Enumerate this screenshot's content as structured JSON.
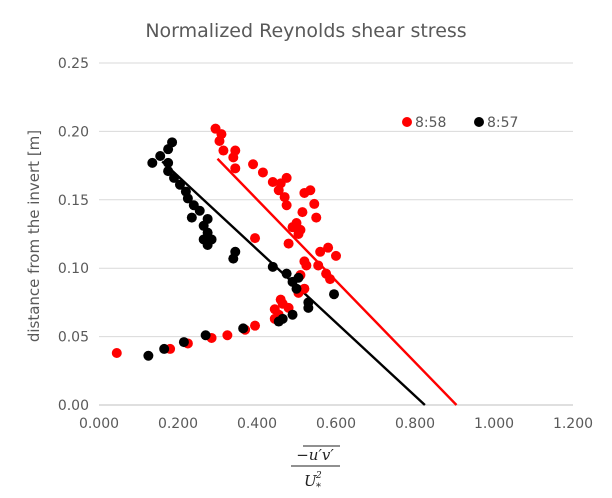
{
  "chart_data": {
    "type": "scatter",
    "title": "Normalized Reynolds shear stress",
    "ylabel": "distance from the invert [m]",
    "xlabel": {
      "numerator": "−u′v′",
      "denominator_base": "U",
      "denominator_super": "2",
      "denominator_sub": "*"
    },
    "xlim": [
      0,
      1.2
    ],
    "ylim": [
      0,
      0.25
    ],
    "x_ticks": [
      "0.000",
      "0.200",
      "0.400",
      "0.600",
      "0.800",
      "1.000",
      "1.200"
    ],
    "y_ticks": [
      "0.00",
      "0.05",
      "0.10",
      "0.15",
      "0.20",
      "0.25"
    ],
    "grid": "horizontal",
    "legend_position": "top-right",
    "series": [
      {
        "name": "8:58",
        "color": "#ff0000",
        "points": [
          [
            0.045,
            0.038
          ],
          [
            0.18,
            0.041
          ],
          [
            0.225,
            0.045
          ],
          [
            0.285,
            0.049
          ],
          [
            0.325,
            0.051
          ],
          [
            0.37,
            0.055
          ],
          [
            0.395,
            0.058
          ],
          [
            0.445,
            0.063
          ],
          [
            0.455,
            0.066
          ],
          [
            0.445,
            0.07
          ],
          [
            0.465,
            0.074
          ],
          [
            0.46,
            0.077
          ],
          [
            0.48,
            0.071
          ],
          [
            0.505,
            0.082
          ],
          [
            0.52,
            0.085
          ],
          [
            0.51,
            0.095
          ],
          [
            0.525,
            0.102
          ],
          [
            0.555,
            0.102
          ],
          [
            0.575,
            0.096
          ],
          [
            0.585,
            0.092
          ],
          [
            0.52,
            0.105
          ],
          [
            0.56,
            0.112
          ],
          [
            0.58,
            0.115
          ],
          [
            0.6,
            0.109
          ],
          [
            0.48,
            0.118
          ],
          [
            0.395,
            0.122
          ],
          [
            0.505,
            0.125
          ],
          [
            0.49,
            0.13
          ],
          [
            0.51,
            0.128
          ],
          [
            0.5,
            0.133
          ],
          [
            0.55,
            0.137
          ],
          [
            0.515,
            0.141
          ],
          [
            0.475,
            0.146
          ],
          [
            0.545,
            0.147
          ],
          [
            0.47,
            0.152
          ],
          [
            0.52,
            0.155
          ],
          [
            0.455,
            0.157
          ],
          [
            0.535,
            0.157
          ],
          [
            0.46,
            0.162
          ],
          [
            0.44,
            0.163
          ],
          [
            0.475,
            0.166
          ],
          [
            0.415,
            0.17
          ],
          [
            0.39,
            0.176
          ],
          [
            0.345,
            0.173
          ],
          [
            0.34,
            0.181
          ],
          [
            0.345,
            0.186
          ],
          [
            0.315,
            0.186
          ],
          [
            0.305,
            0.193
          ],
          [
            0.31,
            0.198
          ],
          [
            0.295,
            0.202
          ]
        ],
        "trend": [
          [
            0.3,
            0.18
          ],
          [
            0.905,
            0.0
          ]
        ]
      },
      {
        "name": "8:57",
        "color": "#000000",
        "points": [
          [
            0.125,
            0.036
          ],
          [
            0.165,
            0.041
          ],
          [
            0.215,
            0.046
          ],
          [
            0.27,
            0.051
          ],
          [
            0.365,
            0.056
          ],
          [
            0.455,
            0.061
          ],
          [
            0.465,
            0.063
          ],
          [
            0.49,
            0.066
          ],
          [
            0.53,
            0.071
          ],
          [
            0.53,
            0.075
          ],
          [
            0.595,
            0.081
          ],
          [
            0.5,
            0.085
          ],
          [
            0.49,
            0.09
          ],
          [
            0.475,
            0.096
          ],
          [
            0.505,
            0.093
          ],
          [
            0.44,
            0.101
          ],
          [
            0.34,
            0.107
          ],
          [
            0.345,
            0.112
          ],
          [
            0.275,
            0.117
          ],
          [
            0.265,
            0.121
          ],
          [
            0.285,
            0.121
          ],
          [
            0.275,
            0.126
          ],
          [
            0.265,
            0.131
          ],
          [
            0.235,
            0.137
          ],
          [
            0.275,
            0.136
          ],
          [
            0.255,
            0.142
          ],
          [
            0.24,
            0.146
          ],
          [
            0.225,
            0.151
          ],
          [
            0.22,
            0.156
          ],
          [
            0.205,
            0.161
          ],
          [
            0.19,
            0.166
          ],
          [
            0.175,
            0.171
          ],
          [
            0.135,
            0.177
          ],
          [
            0.175,
            0.177
          ],
          [
            0.155,
            0.182
          ],
          [
            0.175,
            0.187
          ],
          [
            0.185,
            0.192
          ]
        ],
        "trend": [
          [
            0.16,
            0.178
          ],
          [
            0.825,
            0.0
          ]
        ]
      }
    ]
  }
}
